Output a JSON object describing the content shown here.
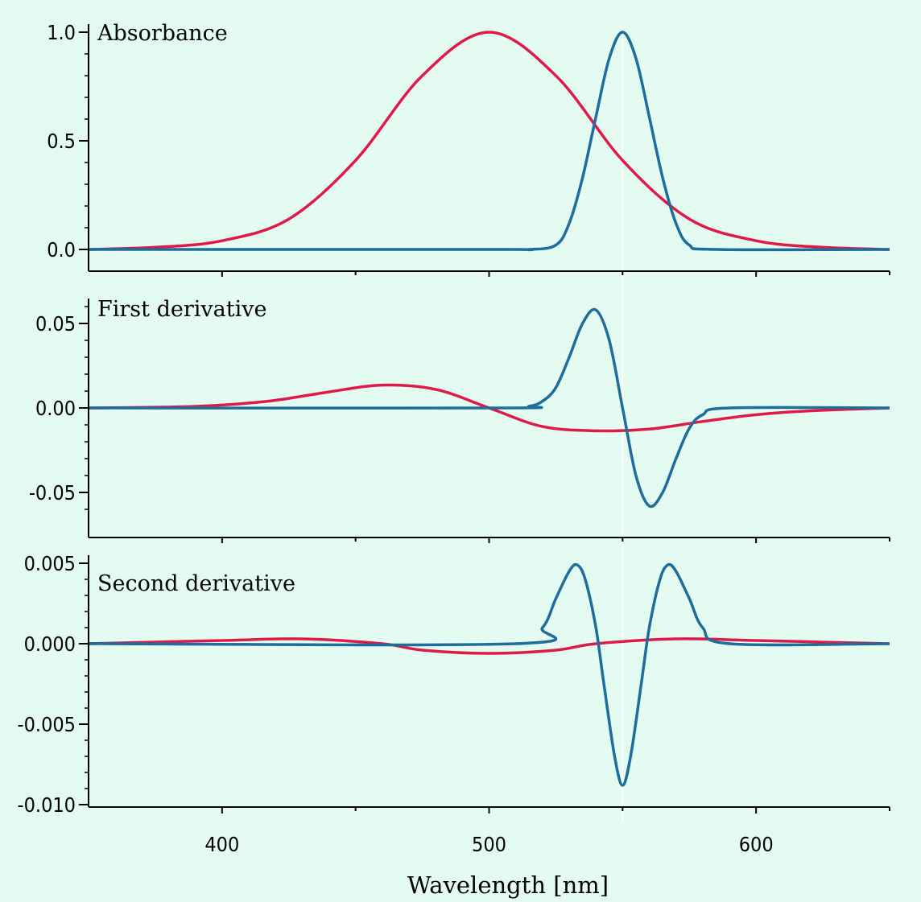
{
  "chart_data": {
    "type": "line",
    "xlabel": "Wavelength [nm]",
    "xlim": [
      350,
      650
    ],
    "x_ticks": [
      400,
      500,
      600
    ],
    "x_tick_labels": [
      "400",
      "500",
      "600"
    ],
    "colors": {
      "red_series": "#e01a48",
      "blue_series": "#1f6d9c",
      "marker_line": "#ffffff",
      "background": "#e4fbf1"
    },
    "marker_x": 550,
    "panels": [
      {
        "title": "Absorbance",
        "ylim": [
          0.0,
          1.0
        ],
        "y_ticks": [
          "0.0",
          "0.5",
          "1.0"
        ],
        "y_tick_values": [
          0.0,
          0.5,
          1.0
        ],
        "series": [
          {
            "color": "#e01a48",
            "x": [
              350,
              375,
              400,
              425,
              450,
              475,
              500,
              525,
              550,
              575,
              600,
              625,
              650
            ],
            "y": [
              0.0,
              0.01,
              0.04,
              0.14,
              0.41,
              0.8,
              1.0,
              0.8,
              0.41,
              0.14,
              0.04,
              0.01,
              0.0
            ]
          },
          {
            "color": "#1f6d9c",
            "x": [
              350,
              500,
              515,
              525,
              530,
              535,
              540,
              545,
              550,
              555,
              560,
              565,
              570,
              575,
              585,
              650
            ],
            "y": [
              0.0,
              0.0,
              0.0,
              0.02,
              0.12,
              0.33,
              0.61,
              0.88,
              1.0,
              0.88,
              0.61,
              0.33,
              0.12,
              0.02,
              0.0,
              0.0
            ]
          }
        ]
      },
      {
        "title": "First derivative",
        "ylim": [
          -0.06,
          0.06
        ],
        "y_ticks": [
          "-0.05",
          "0.00",
          "0.05"
        ],
        "y_tick_values": [
          -0.05,
          0.0,
          0.05
        ],
        "series": [
          {
            "color": "#e01a48",
            "x": [
              350,
              380,
              400,
              420,
              440,
              460,
              480,
              500,
              520,
              540,
              560,
              580,
              600,
              620,
              650
            ],
            "y": [
              0.0,
              0.0005,
              0.0017,
              0.0045,
              0.0095,
              0.0135,
              0.011,
              0.0,
              -0.011,
              -0.0135,
              -0.0125,
              -0.008,
              -0.004,
              -0.0017,
              0.0
            ]
          },
          {
            "color": "#1f6d9c",
            "x": [
              350,
              505,
              515,
              520,
              525,
              530,
              535,
              540,
              545,
              550,
              555,
              560,
              565,
              570,
              575,
              580,
              590,
              650
            ],
            "y": [
              0.0,
              0.0,
              0.001,
              0.004,
              0.012,
              0.03,
              0.05,
              0.058,
              0.04,
              0.0,
              -0.04,
              -0.058,
              -0.05,
              -0.03,
              -0.012,
              -0.004,
              0.0,
              0.0
            ]
          }
        ]
      },
      {
        "title": "Second derivative",
        "ylim": [
          -0.01,
          0.005
        ],
        "y_ticks": [
          "-0.010",
          "-0.005",
          "0.000",
          "0.005"
        ],
        "y_tick_values": [
          -0.01,
          -0.005,
          0.0,
          0.005
        ],
        "series": [
          {
            "color": "#e01a48",
            "x": [
              350,
              400,
              430,
              460,
              475,
              500,
              525,
              540,
              570,
              600,
              650
            ],
            "y": [
              0.0,
              0.0002,
              0.0003,
              0.0,
              -0.0004,
              -0.0006,
              -0.0004,
              0.0,
              0.0003,
              0.0002,
              0.0
            ]
          },
          {
            "color": "#1f6d9c",
            "x": [
              350,
              510,
              520,
              525,
              530,
              533,
              536,
              540,
              543,
              547,
              550,
              553,
              557,
              560,
              564,
              567,
              570,
              575,
              580,
              590,
              650
            ],
            "y": [
              0.0,
              0.0,
              0.001,
              0.0028,
              0.0045,
              0.0049,
              0.004,
              0.001,
              -0.0025,
              -0.007,
              -0.0088,
              -0.007,
              -0.0025,
              0.001,
              0.004,
              0.0049,
              0.0045,
              0.0028,
              0.001,
              0.0,
              0.0
            ]
          }
        ]
      }
    ]
  }
}
